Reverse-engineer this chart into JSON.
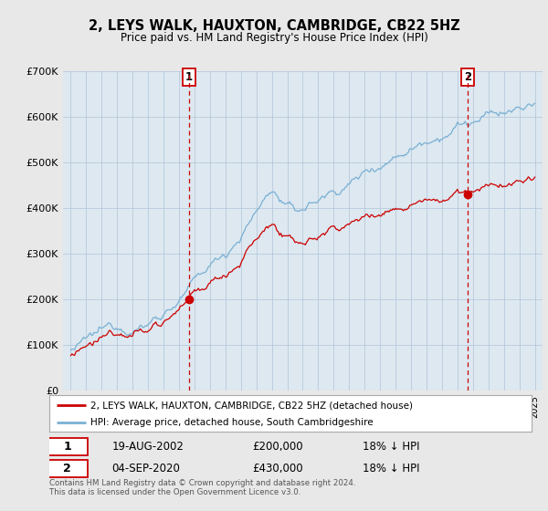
{
  "title": "2, LEYS WALK, HAUXTON, CAMBRIDGE, CB22 5HZ",
  "subtitle": "Price paid vs. HM Land Registry's House Price Index (HPI)",
  "legend_line1": "2, LEYS WALK, HAUXTON, CAMBRIDGE, CB22 5HZ (detached house)",
  "legend_line2": "HPI: Average price, detached house, South Cambridgeshire",
  "sale1_date": "19-AUG-2002",
  "sale1_price": "£200,000",
  "sale1_pct": "18% ↓ HPI",
  "sale1_year": 2002.63,
  "sale1_value": 200000,
  "sale2_date": "04-SEP-2020",
  "sale2_price": "£430,000",
  "sale2_pct": "18% ↓ HPI",
  "sale2_year": 2020.67,
  "sale2_value": 430000,
  "red_line_color": "#cc0000",
  "blue_line_color": "#7ab0d4",
  "plot_bg_color": "#dde8f0",
  "background_color": "#e8e8e8",
  "dashed_color": "#cc0000",
  "footer_text": "Contains HM Land Registry data © Crown copyright and database right 2024.\nThis data is licensed under the Open Government Licence v3.0.",
  "ylim": [
    0,
    700000
  ],
  "xlim_start": 1994.5,
  "xlim_end": 2025.5
}
